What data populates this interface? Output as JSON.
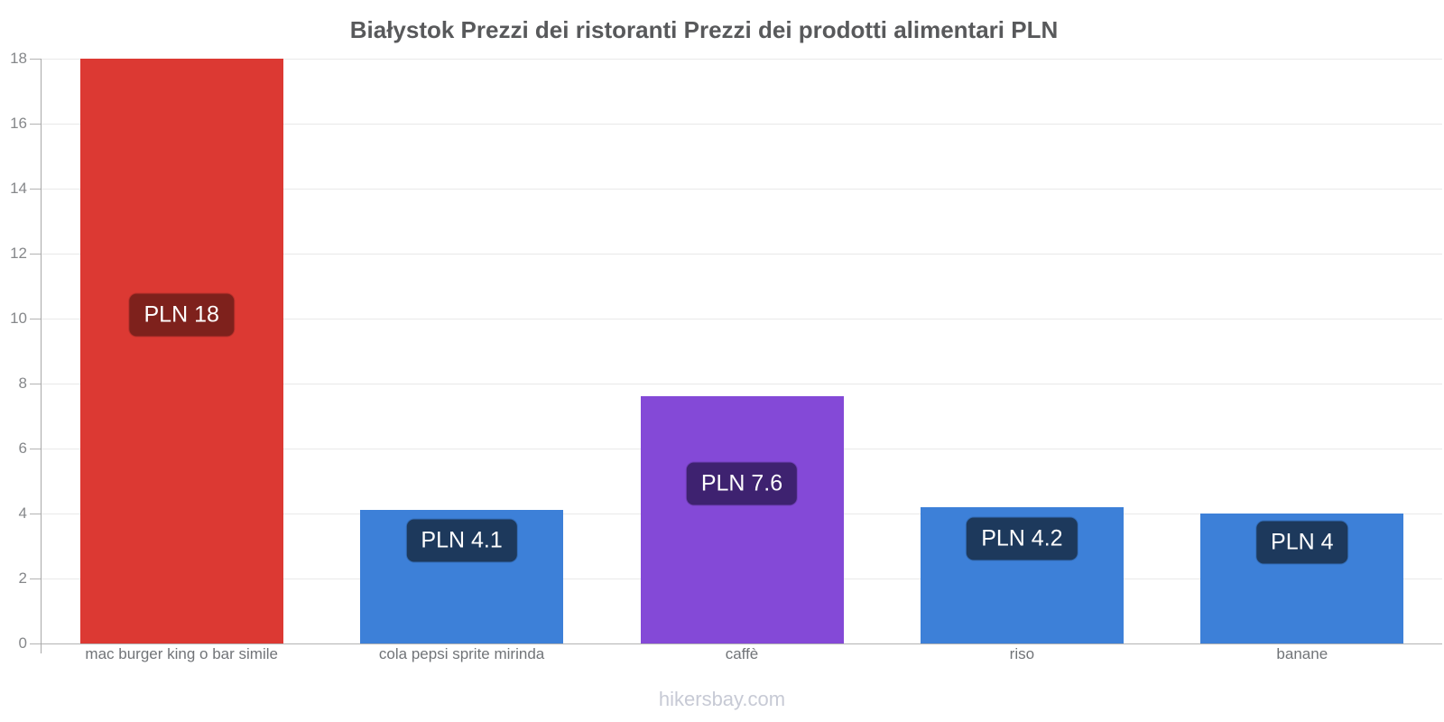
{
  "chart_data": {
    "type": "bar",
    "title": "Białystok Prezzi dei ristoranti Prezzi dei prodotti alimentari PLN",
    "categories": [
      "mac burger king o bar simile",
      "cola pepsi sprite mirinda",
      "caffè",
      "riso",
      "banane"
    ],
    "values": [
      18,
      4.1,
      7.6,
      4.2,
      4
    ],
    "bar_labels": [
      "PLN 18",
      "PLN 4.1",
      "PLN 7.6",
      "PLN 4.2",
      "PLN 4"
    ],
    "bar_colors": [
      "#dc3933",
      "#3d80d8",
      "#8449d7",
      "#3d80d8",
      "#3d80d8"
    ],
    "badge_colors": [
      "#7e211c",
      "#1d395c",
      "#3e2270",
      "#1d395c",
      "#1d395c"
    ],
    "xlabel": "",
    "ylabel": "",
    "ylim": [
      0,
      18
    ],
    "yticks": [
      0,
      2,
      4,
      6,
      8,
      10,
      12,
      14,
      16,
      18
    ],
    "grid": "horizontal",
    "legend": "none"
  },
  "footer": {
    "text": "hikersbay.com"
  },
  "colors": {
    "background": "#ffffff",
    "grid": "#e9e9e9",
    "axis": "#a8a8a8",
    "title": "#58595b",
    "tick_label": "#85878a",
    "category_label": "#717478",
    "footer": "#c7cad5",
    "badge_text": "#ffffff"
  }
}
